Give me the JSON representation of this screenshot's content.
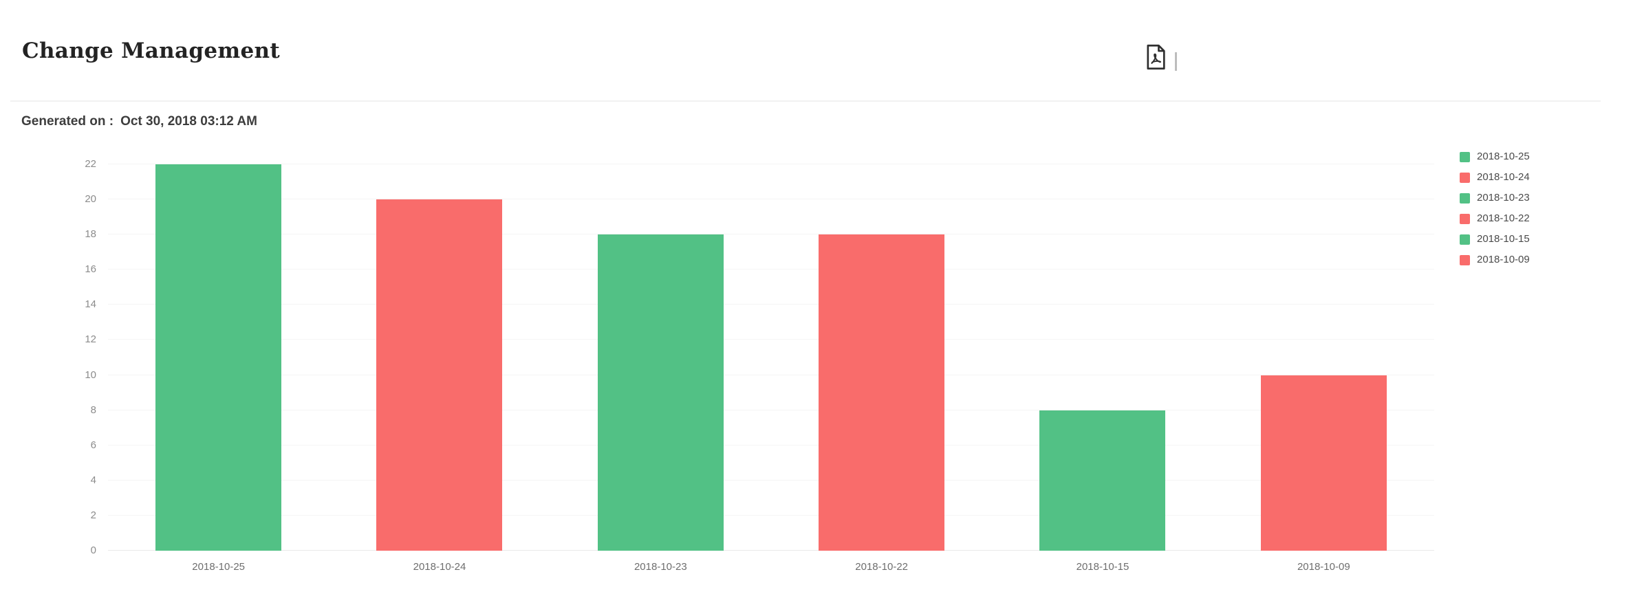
{
  "header": {
    "title": "Change Management",
    "toolbar": {
      "export_pdf_icon": "pdf-file-icon"
    }
  },
  "meta": {
    "generated_label": "Generated on :",
    "generated_value": "Oct 30, 2018 03:12 AM"
  },
  "colors": {
    "green": "#52c185",
    "red": "#f96c6b",
    "gridline": "#f5f5f5",
    "baseline": "#e9e9e9",
    "tick_text": "#8b8b8b",
    "xlabel_text": "#6e6e6e",
    "legend_text": "#4a4a4a",
    "title_text": "#232323"
  },
  "chart_data": {
    "type": "bar",
    "title": "Change Management",
    "categories": [
      "2018-10-25",
      "2018-10-24",
      "2018-10-23",
      "2018-10-22",
      "2018-10-15",
      "2018-10-09"
    ],
    "values": [
      22,
      20,
      18,
      18,
      8,
      10
    ],
    "bar_colors": [
      "#52c185",
      "#f96c6b",
      "#52c185",
      "#f96c6b",
      "#52c185",
      "#f96c6b"
    ],
    "xlabel": "",
    "ylabel": "",
    "ylim": [
      0,
      22
    ],
    "ytick_step": 2,
    "grid": true,
    "legend_position": "right",
    "legend": [
      {
        "label": "2018-10-25",
        "color": "#52c185"
      },
      {
        "label": "2018-10-24",
        "color": "#f96c6b"
      },
      {
        "label": "2018-10-23",
        "color": "#52c185"
      },
      {
        "label": "2018-10-22",
        "color": "#f96c6b"
      },
      {
        "label": "2018-10-15",
        "color": "#52c185"
      },
      {
        "label": "2018-10-09",
        "color": "#f96c6b"
      }
    ]
  }
}
